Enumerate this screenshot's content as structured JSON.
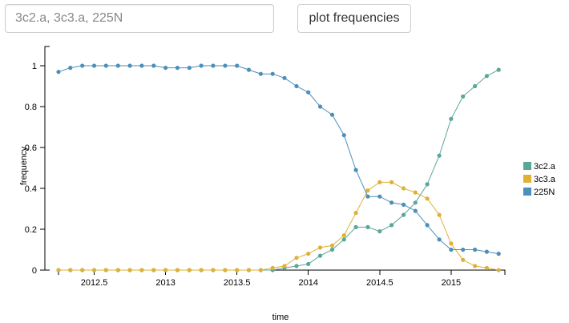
{
  "search": {
    "placeholder": "3c2.a, 3c3.a, 225N",
    "value": ""
  },
  "toolbar": {
    "plot_label": "plot frequencies"
  },
  "chart_data": {
    "type": "line",
    "xlabel": "time",
    "ylabel": "frequency",
    "xlim": [
      2012.25,
      2015.36
    ],
    "ylim": [
      0,
      1
    ],
    "x_ticks": [
      2012.5,
      2013,
      2013.5,
      2014,
      2014.5,
      2015
    ],
    "x_tick_labels": [
      "2012.5",
      "2013",
      "2013.5",
      "2014",
      "2014.5",
      "2015"
    ],
    "y_ticks": [
      0,
      0.2,
      0.4,
      0.6,
      0.8,
      1
    ],
    "y_tick_labels": [
      "0",
      "0.2",
      "0.4",
      "0.6",
      "0.8",
      "1"
    ],
    "x": [
      2012.25,
      2012.333,
      2012.417,
      2012.5,
      2012.583,
      2012.667,
      2012.75,
      2012.833,
      2012.917,
      2013.0,
      2013.083,
      2013.167,
      2013.25,
      2013.333,
      2013.417,
      2013.5,
      2013.583,
      2013.667,
      2013.75,
      2013.833,
      2013.917,
      2014.0,
      2014.083,
      2014.167,
      2014.25,
      2014.333,
      2014.417,
      2014.5,
      2014.583,
      2014.667,
      2014.75,
      2014.833,
      2014.917,
      2015.0,
      2015.083,
      2015.167,
      2015.25,
      2015.333
    ],
    "grid": false,
    "legend_position": "right",
    "series": [
      {
        "name": "3c2.a",
        "color": "#5aa799",
        "values": [
          0,
          0,
          0,
          0,
          0,
          0,
          0,
          0,
          0,
          0,
          0,
          0,
          0,
          0,
          0,
          0,
          0,
          0,
          0,
          0.01,
          0.02,
          0.03,
          0.07,
          0.1,
          0.15,
          0.21,
          0.21,
          0.19,
          0.22,
          0.27,
          0.33,
          0.42,
          0.56,
          0.74,
          0.85,
          0.9,
          0.95,
          0.98
        ]
      },
      {
        "name": "3c3.a",
        "color": "#dfb137",
        "values": [
          0,
          0,
          0,
          0,
          0,
          0,
          0,
          0,
          0,
          0,
          0,
          0,
          0,
          0,
          0,
          0,
          0,
          0,
          0.01,
          0.02,
          0.06,
          0.08,
          0.11,
          0.12,
          0.17,
          0.28,
          0.39,
          0.43,
          0.43,
          0.4,
          0.38,
          0.35,
          0.27,
          0.13,
          0.05,
          0.02,
          0.01,
          0
        ]
      },
      {
        "name": "225N",
        "color": "#4b8fba",
        "values": [
          0.97,
          0.99,
          1,
          1,
          1,
          1,
          1,
          1,
          1,
          0.99,
          0.99,
          0.99,
          1,
          1,
          1,
          1,
          0.98,
          0.96,
          0.96,
          0.94,
          0.9,
          0.87,
          0.8,
          0.76,
          0.66,
          0.49,
          0.36,
          0.36,
          0.33,
          0.32,
          0.29,
          0.22,
          0.15,
          0.1,
          0.1,
          0.1,
          0.09,
          0.08
        ]
      }
    ]
  }
}
